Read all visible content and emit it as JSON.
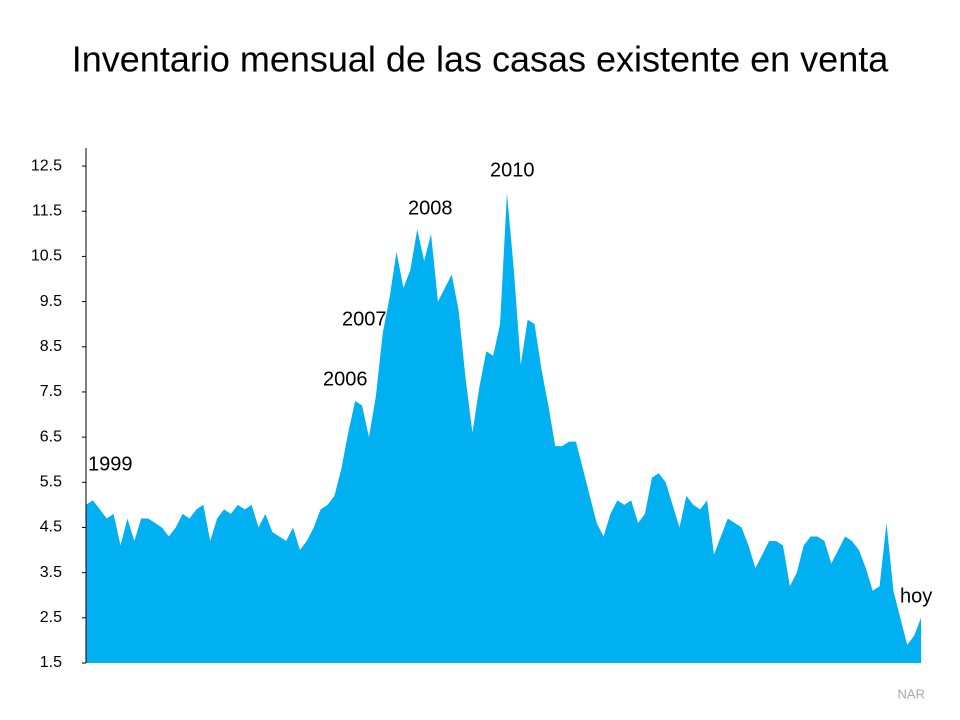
{
  "chart_data": {
    "type": "area",
    "title": "Inventario mensual de las casas existente en venta",
    "values": [
      5.0,
      5.1,
      4.9,
      4.7,
      4.8,
      4.1,
      4.7,
      4.2,
      4.7,
      4.7,
      4.6,
      4.5,
      4.3,
      4.5,
      4.8,
      4.7,
      4.9,
      5.0,
      4.2,
      4.7,
      4.9,
      4.8,
      5.0,
      4.9,
      5.0,
      4.5,
      4.8,
      4.4,
      4.3,
      4.2,
      4.5,
      4.0,
      4.2,
      4.5,
      4.9,
      5.0,
      5.2,
      5.8,
      6.6,
      7.3,
      7.2,
      6.5,
      7.4,
      8.8,
      9.6,
      10.6,
      9.8,
      10.2,
      11.1,
      10.4,
      11.0,
      9.5,
      9.8,
      10.1,
      9.3,
      7.8,
      6.6,
      7.6,
      8.4,
      8.3,
      9.0,
      11.9,
      10.2,
      8.1,
      9.1,
      9.0,
      8.0,
      7.2,
      6.3,
      6.3,
      6.4,
      6.4,
      5.8,
      5.2,
      4.6,
      4.3,
      4.8,
      5.1,
      5.0,
      5.1,
      4.6,
      4.8,
      5.6,
      5.7,
      5.5,
      5.0,
      4.5,
      5.2,
      5.0,
      4.9,
      5.1,
      3.9,
      4.3,
      4.7,
      4.6,
      4.5,
      4.1,
      3.6,
      3.9,
      4.2,
      4.2,
      4.1,
      3.2,
      3.5,
      4.1,
      4.3,
      4.3,
      4.2,
      3.7,
      4.0,
      4.3,
      4.2,
      4.0,
      3.6,
      3.1,
      3.2,
      4.6,
      3.1,
      2.5,
      1.9,
      2.1,
      2.5
    ],
    "color": "#00b0f0",
    "ylim": [
      1.5,
      12.9
    ],
    "yticks": [
      1.5,
      2.5,
      3.5,
      4.5,
      5.5,
      6.5,
      7.5,
      8.5,
      9.5,
      10.5,
      11.5,
      12.5
    ],
    "annotations": [
      "1999",
      "2006",
      "2007",
      "2008",
      "2010",
      "hoy"
    ],
    "source": "NAR"
  }
}
